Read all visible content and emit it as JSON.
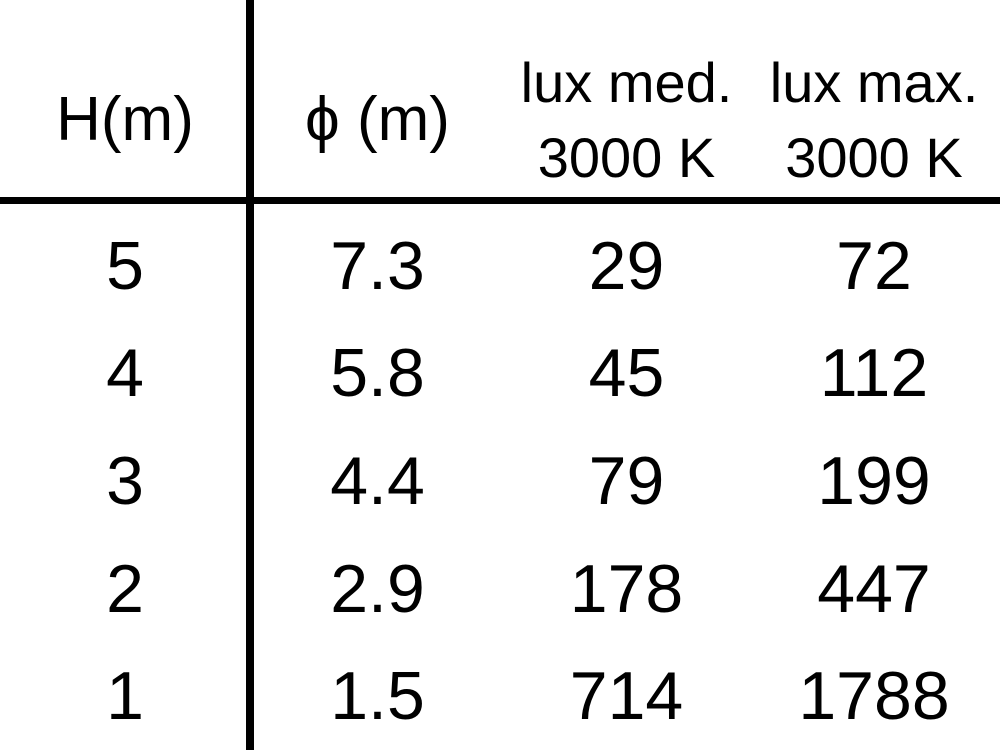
{
  "page": {
    "background": "#ffffff",
    "text_color": "#000000",
    "rule_color": "#000000"
  },
  "header": {
    "col_h": "H(m)",
    "col_phi": "ϕ (m)",
    "col_lux_med_line1": "lux med.",
    "col_lux_med_line2": "3000 K",
    "col_lux_max_line1": "lux max.",
    "col_lux_max_line2": "3000 K"
  },
  "chart_data": {
    "type": "table",
    "columns": [
      "H(m)",
      "ϕ (m)",
      "lux med. 3000 K",
      "lux max. 3000 K"
    ],
    "rows": [
      [
        5,
        7.3,
        29,
        72
      ],
      [
        4,
        5.8,
        45,
        112
      ],
      [
        3,
        4.4,
        79,
        199
      ],
      [
        2,
        2.9,
        178,
        447
      ],
      [
        1,
        1.5,
        714,
        1788
      ]
    ]
  }
}
